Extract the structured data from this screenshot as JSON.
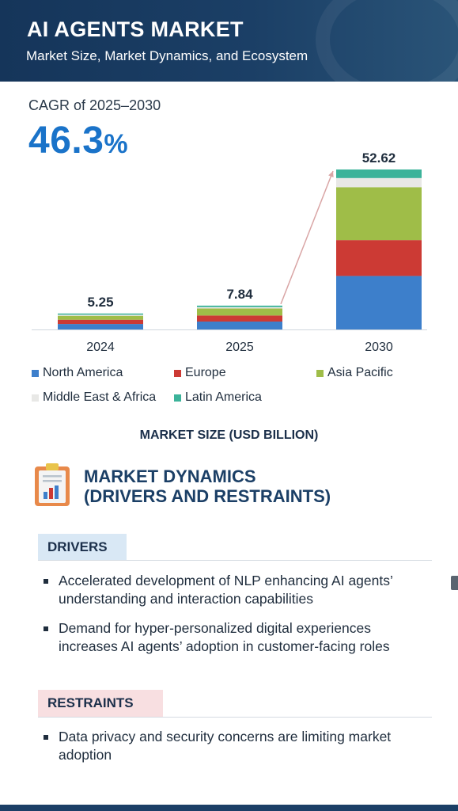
{
  "header": {
    "title": "AI AGENTS MARKET",
    "subtitle": "Market Size, Market Dynamics, and Ecosystem"
  },
  "cagr": {
    "label": "CAGR of 2025–2030",
    "value": "46.3",
    "unit": "%"
  },
  "chart_data": {
    "type": "bar",
    "stacked": true,
    "categories": [
      "2024",
      "2025",
      "2030"
    ],
    "totals": [
      "5.25",
      "7.84",
      "52.62"
    ],
    "series": [
      {
        "name": "North America",
        "color": "#3d7fcb",
        "values": [
          1.8,
          2.6,
          17.6
        ]
      },
      {
        "name": "Europe",
        "color": "#cc3a34",
        "values": [
          1.4,
          2.0,
          11.8
        ]
      },
      {
        "name": "Asia Pacific",
        "color": "#9fbd48",
        "values": [
          1.3,
          2.3,
          17.4
        ]
      },
      {
        "name": "Middle East & Africa",
        "color": "#e8e8e6",
        "values": [
          0.35,
          0.45,
          3.0
        ]
      },
      {
        "name": "Latin America",
        "color": "#3cb39a",
        "values": [
          0.4,
          0.49,
          2.82
        ]
      }
    ],
    "xlabel": "MARKET SIZE (USD BILLION)",
    "ylim": [
      0,
      52.62
    ],
    "grid": false,
    "legend_position": "bottom",
    "trend_arrow": true
  },
  "dynamics": {
    "title_line1": "MARKET DYNAMICS",
    "title_line2": "(DRIVERS AND RESTRAINTS)",
    "icon": "clipboard-chart-icon",
    "drivers": {
      "label": "DRIVERS",
      "tab_color": "#d9e8f5",
      "items": [
        "Accelerated development of NLP enhancing AI agents’ understanding and interaction capabilities",
        "Demand for hyper-personalized digital experiences increases AI agents’ adoption in customer-facing roles"
      ]
    },
    "restraints": {
      "label": "RESTRAINTS",
      "tab_color": "#f8dfe1",
      "items": [
        "Data privacy and security concerns are limiting market adoption"
      ]
    }
  }
}
